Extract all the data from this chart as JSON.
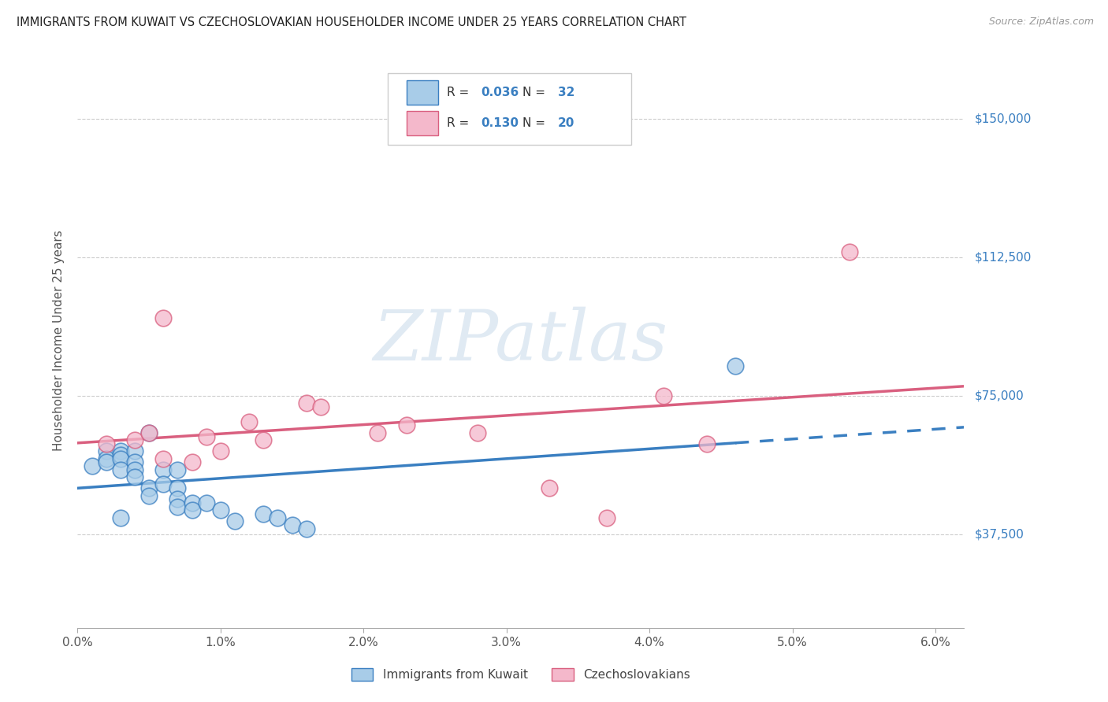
{
  "title": "IMMIGRANTS FROM KUWAIT VS CZECHOSLOVAKIAN HOUSEHOLDER INCOME UNDER 25 YEARS CORRELATION CHART",
  "source": "Source: ZipAtlas.com",
  "ylabel": "Householder Income Under 25 years",
  "ytick_vals": [
    37500,
    75000,
    112500,
    150000
  ],
  "ytick_labels": [
    "$37,500",
    "$75,000",
    "$112,500",
    "$150,000"
  ],
  "xtick_vals": [
    0.0,
    0.01,
    0.02,
    0.03,
    0.04,
    0.05,
    0.06
  ],
  "xtick_labels": [
    "0.0%",
    "1.0%",
    "2.0%",
    "3.0%",
    "4.0%",
    "5.0%",
    "6.0%"
  ],
  "xmin": 0.0,
  "xmax": 0.062,
  "ymin": 12000,
  "ymax": 168000,
  "legend1_R": "0.036",
  "legend1_N": "32",
  "legend2_R": "0.130",
  "legend2_N": "20",
  "color_blue_fill": "#a8cce8",
  "color_pink_fill": "#f4b8cb",
  "color_blue_line": "#3a7fc1",
  "color_pink_line": "#d95f7f",
  "legend_label_blue": "Immigrants from Kuwait",
  "legend_label_pink": "Czechoslovakians",
  "watermark_text": "ZIPatlas",
  "blue_x": [
    0.001,
    0.002,
    0.002,
    0.002,
    0.003,
    0.003,
    0.003,
    0.003,
    0.004,
    0.004,
    0.004,
    0.004,
    0.005,
    0.005,
    0.005,
    0.006,
    0.006,
    0.007,
    0.007,
    0.007,
    0.007,
    0.008,
    0.008,
    0.009,
    0.01,
    0.011,
    0.013,
    0.014,
    0.015,
    0.016,
    0.046,
    0.003
  ],
  "blue_y": [
    56000,
    60000,
    58000,
    57000,
    60000,
    59000,
    58000,
    55000,
    60000,
    57000,
    55000,
    53000,
    65000,
    50000,
    48000,
    55000,
    51000,
    55000,
    50000,
    47000,
    45000,
    46000,
    44000,
    46000,
    44000,
    41000,
    43000,
    42000,
    40000,
    39000,
    83000,
    42000
  ],
  "pink_x": [
    0.002,
    0.004,
    0.005,
    0.006,
    0.006,
    0.008,
    0.009,
    0.01,
    0.012,
    0.013,
    0.016,
    0.017,
    0.021,
    0.023,
    0.028,
    0.033,
    0.037,
    0.041,
    0.044,
    0.054
  ],
  "pink_y": [
    62000,
    63000,
    65000,
    96000,
    58000,
    57000,
    64000,
    60000,
    68000,
    63000,
    73000,
    72000,
    65000,
    67000,
    65000,
    50000,
    42000,
    75000,
    62000,
    114000
  ]
}
